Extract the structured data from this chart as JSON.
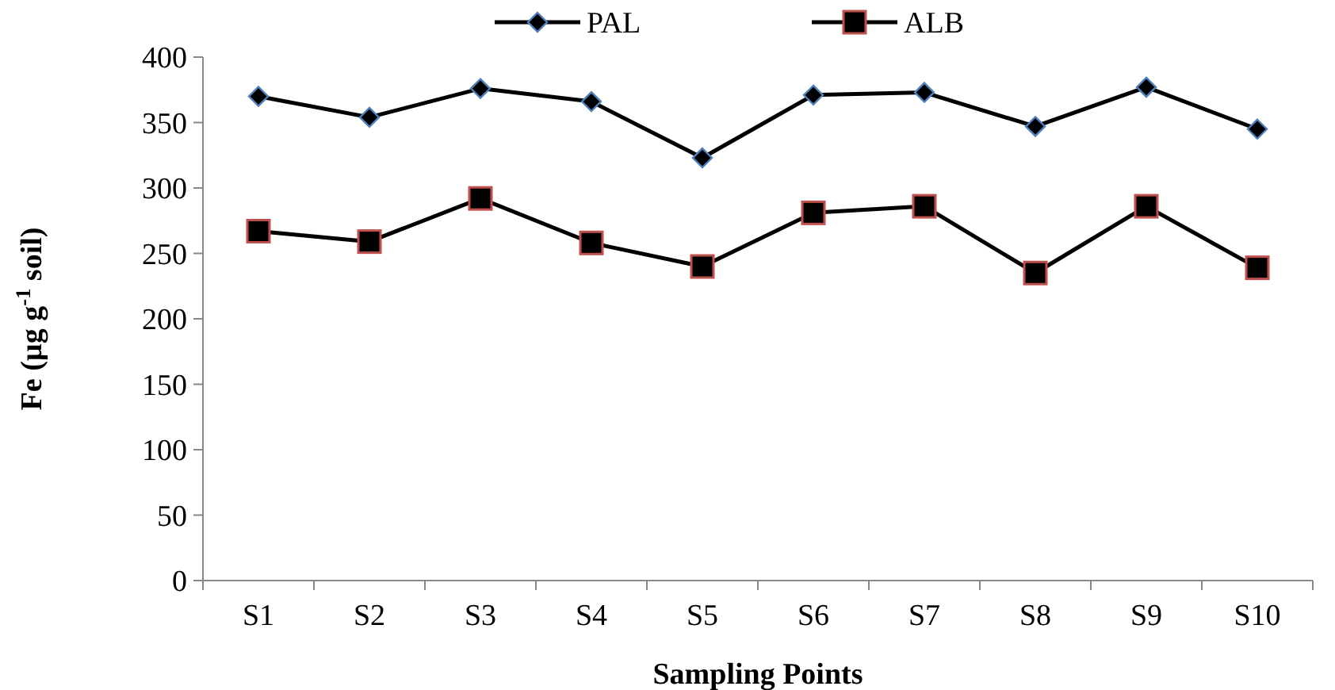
{
  "chart_data": {
    "type": "line",
    "xlabel": "Sampling Points",
    "ylabel": "Fe (µg g$^{-1}$ soil)",
    "categories": [
      "S1",
      "S2",
      "S3",
      "S4",
      "S5",
      "S6",
      "S7",
      "S8",
      "S9",
      "S10"
    ],
    "series": [
      {
        "name": "PAL",
        "color": "#000000",
        "marker": "diamond",
        "values": [
          370,
          354,
          376,
          366,
          323,
          371,
          373,
          347,
          377,
          345
        ]
      },
      {
        "name": "ALB",
        "color": "#000000",
        "marker": "square",
        "values": [
          267,
          259,
          292,
          258,
          240,
          281,
          286,
          235,
          286,
          239
        ]
      }
    ],
    "ylim": [
      0,
      400
    ],
    "yticks": [
      0,
      50,
      100,
      150,
      200,
      250,
      300,
      350,
      400
    ],
    "grid": false,
    "legend": "top",
    "line_style": "solid"
  }
}
